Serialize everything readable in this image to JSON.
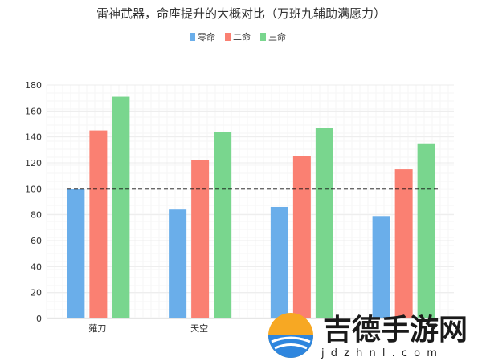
{
  "chart_data": {
    "type": "bar",
    "title": "雷神武器，命座提升的大概对比（万班九辅助满愿力）",
    "categories": [
      "薙刀",
      "天空",
      "",
      ""
    ],
    "series": [
      {
        "name": "零命",
        "values": [
          100,
          84,
          86,
          79
        ],
        "color": "#6aaeea"
      },
      {
        "name": "二命",
        "values": [
          145,
          122,
          125,
          115
        ],
        "color": "#fa8072"
      },
      {
        "name": "三命",
        "values": [
          171,
          144,
          147,
          135
        ],
        "color": "#79d68e"
      }
    ],
    "ylim": [
      0,
      180
    ],
    "yticks": [
      0,
      20,
      40,
      60,
      80,
      100,
      120,
      140,
      160,
      180
    ],
    "reference_line": 100,
    "grid": true,
    "legend_position": "top-center"
  },
  "watermark": {
    "text": "吉德手游网",
    "url": "j d z h n l . c o m"
  }
}
